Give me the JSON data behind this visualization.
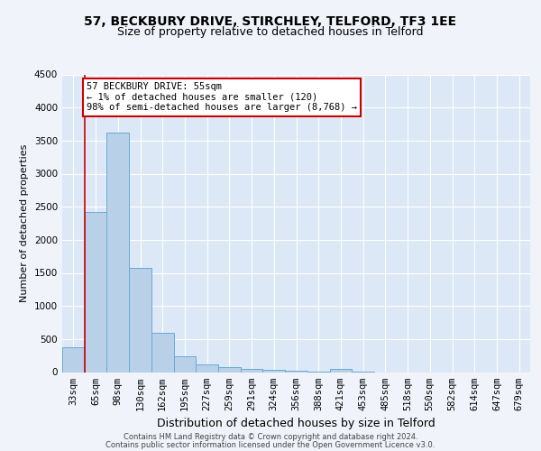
{
  "title1": "57, BECKBURY DRIVE, STIRCHLEY, TELFORD, TF3 1EE",
  "title2": "Size of property relative to detached houses in Telford",
  "xlabel": "Distribution of detached houses by size in Telford",
  "ylabel": "Number of detached properties",
  "categories": [
    "33sqm",
    "65sqm",
    "98sqm",
    "130sqm",
    "162sqm",
    "195sqm",
    "227sqm",
    "259sqm",
    "291sqm",
    "324sqm",
    "356sqm",
    "388sqm",
    "421sqm",
    "453sqm",
    "485sqm",
    "518sqm",
    "550sqm",
    "582sqm",
    "614sqm",
    "647sqm",
    "679sqm"
  ],
  "values": [
    370,
    2420,
    3620,
    1580,
    600,
    240,
    115,
    80,
    50,
    30,
    15,
    8,
    50,
    5,
    0,
    0,
    0,
    0,
    0,
    0,
    0
  ],
  "bar_color": "#b8d0e8",
  "bar_edge_color": "#6aaad4",
  "annotation_text": "57 BECKBURY DRIVE: 55sqm\n← 1% of detached houses are smaller (120)\n98% of semi-detached houses are larger (8,768) →",
  "annotation_box_facecolor": "#ffffff",
  "annotation_box_edgecolor": "#cc0000",
  "vline_color": "#cc0000",
  "vline_x": 0.5,
  "ylim": [
    0,
    4500
  ],
  "yticks": [
    0,
    500,
    1000,
    1500,
    2000,
    2500,
    3000,
    3500,
    4000,
    4500
  ],
  "footer1": "Contains HM Land Registry data © Crown copyright and database right 2024.",
  "footer2": "Contains public sector information licensed under the Open Government Licence v3.0.",
  "fig_facecolor": "#f0f4fa",
  "plot_facecolor": "#dce8f5",
  "grid_color": "#ffffff",
  "title_fontsize": 10,
  "subtitle_fontsize": 9,
  "ylabel_fontsize": 8,
  "xlabel_fontsize": 9,
  "tick_fontsize": 7.5,
  "footer_fontsize": 6,
  "annot_fontsize": 7.5
}
